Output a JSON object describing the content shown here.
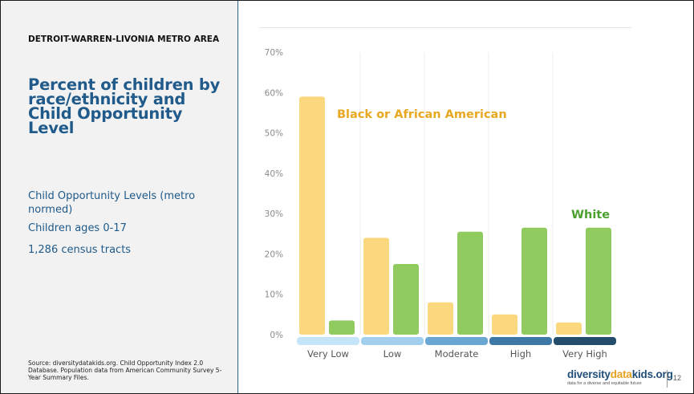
{
  "left_panel": {
    "region": "DETROIT-WARREN-LIVONIA METRO AREA",
    "title": "Percent of children by race/ethnicity and Child Opportunity Level",
    "info1": "Child Opportunity Levels (metro normed)",
    "info2": "Children ages 0-17",
    "info3": "1,286 census tracts",
    "source": "Source: diversitydatakids.org. Child Opportunity Index 2.0 Database. Population data from American Community Survey 5-Year Summary Files."
  },
  "footer": {
    "logo_part1": "diversity",
    "logo_part2": "data",
    "logo_part3": "kids.org",
    "tagline": "data for a diverse and equitable future",
    "page_number": "12"
  },
  "colors": {
    "black_series": "#fbd87d",
    "white_series": "#8fcb5e",
    "black_label": "#e8a821",
    "white_label": "#4aa02c",
    "level_colors": [
      "#c6e4f7",
      "#a3cfee",
      "#6aa6d2",
      "#3e78a6",
      "#244d6c"
    ]
  },
  "chart_data": {
    "type": "bar",
    "categories": [
      "Very Low",
      "Low",
      "Moderate",
      "High",
      "Very High"
    ],
    "series": [
      {
        "name": "Black or African American",
        "values": [
          59,
          24,
          8,
          5,
          3
        ]
      },
      {
        "name": "White",
        "values": [
          3.5,
          17.5,
          25.5,
          26.5,
          26.5
        ]
      }
    ],
    "ylim": [
      0,
      70
    ],
    "yticks": [
      "0%",
      "10%",
      "20%",
      "30%",
      "40%",
      "50%",
      "60%",
      "70%"
    ],
    "grid": false
  }
}
